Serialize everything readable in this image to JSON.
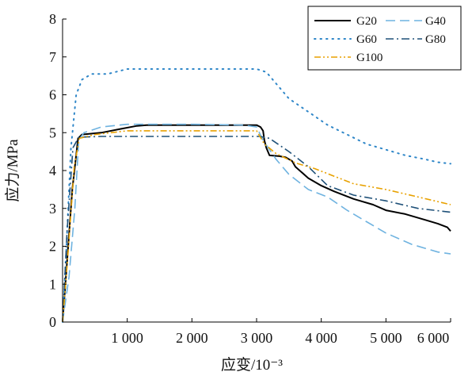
{
  "chart_data": {
    "type": "line",
    "xlabel": "应变/10⁻³",
    "ylabel": "应力/MPa",
    "xlim": [
      0,
      6000
    ],
    "ylim": [
      0,
      8
    ],
    "x_ticks": [
      1000,
      2000,
      3000,
      4000,
      5000,
      6000
    ],
    "x_tick_labels": [
      "1 000",
      "2 000",
      "3 000",
      "4 000",
      "5 000",
      "6 000"
    ],
    "y_ticks": [
      0,
      1,
      2,
      3,
      4,
      5,
      6,
      7,
      8
    ],
    "y_tick_labels": [
      "0",
      "1",
      "2",
      "3",
      "4",
      "5",
      "6",
      "7",
      "8"
    ],
    "grid": false,
    "legend_position": "top-right",
    "series": [
      {
        "name": "G20",
        "color": "#000000",
        "dash": "solid",
        "points": [
          [
            0,
            0
          ],
          [
            70,
            1.6
          ],
          [
            150,
            3.5
          ],
          [
            240,
            4.85
          ],
          [
            300,
            4.95
          ],
          [
            600,
            5.0
          ],
          [
            900,
            5.1
          ],
          [
            1150,
            5.18
          ],
          [
            1300,
            5.2
          ],
          [
            2000,
            5.2
          ],
          [
            2700,
            5.2
          ],
          [
            3000,
            5.2
          ],
          [
            3060,
            5.15
          ],
          [
            3100,
            5.05
          ],
          [
            3120,
            4.8
          ],
          [
            3150,
            4.6
          ],
          [
            3200,
            4.4
          ],
          [
            3350,
            4.38
          ],
          [
            3450,
            4.35
          ],
          [
            3550,
            4.25
          ],
          [
            3600,
            4.1
          ],
          [
            3800,
            3.8
          ],
          [
            4000,
            3.6
          ],
          [
            4200,
            3.45
          ],
          [
            4500,
            3.25
          ],
          [
            4800,
            3.1
          ],
          [
            5000,
            2.95
          ],
          [
            5300,
            2.85
          ],
          [
            5600,
            2.7
          ],
          [
            5800,
            2.6
          ],
          [
            5950,
            2.5
          ],
          [
            6000,
            2.4
          ]
        ]
      },
      {
        "name": "G40",
        "color": "#6fb3e0",
        "dash": "long-dash",
        "points": [
          [
            0,
            0
          ],
          [
            100,
            1.2
          ],
          [
            190,
            3.0
          ],
          [
            250,
            4.8
          ],
          [
            330,
            5.0
          ],
          [
            600,
            5.15
          ],
          [
            1000,
            5.22
          ],
          [
            2000,
            5.22
          ],
          [
            2800,
            5.2
          ],
          [
            3000,
            5.15
          ],
          [
            3100,
            4.8
          ],
          [
            3300,
            4.3
          ],
          [
            3500,
            3.9
          ],
          [
            3800,
            3.5
          ],
          [
            4100,
            3.3
          ],
          [
            4400,
            2.95
          ],
          [
            4700,
            2.65
          ],
          [
            5000,
            2.35
          ],
          [
            5400,
            2.05
          ],
          [
            5800,
            1.85
          ],
          [
            6000,
            1.8
          ]
        ]
      },
      {
        "name": "G60",
        "color": "#2e86c8",
        "dash": "dotted",
        "points": [
          [
            0,
            0
          ],
          [
            60,
            2.0
          ],
          [
            130,
            4.6
          ],
          [
            210,
            6.0
          ],
          [
            300,
            6.4
          ],
          [
            450,
            6.55
          ],
          [
            700,
            6.55
          ],
          [
            1000,
            6.68
          ],
          [
            2000,
            6.68
          ],
          [
            3000,
            6.68
          ],
          [
            3150,
            6.6
          ],
          [
            3300,
            6.3
          ],
          [
            3500,
            5.9
          ],
          [
            3800,
            5.55
          ],
          [
            4100,
            5.2
          ],
          [
            4400,
            4.95
          ],
          [
            4700,
            4.7
          ],
          [
            5000,
            4.55
          ],
          [
            5300,
            4.4
          ],
          [
            5600,
            4.3
          ],
          [
            5800,
            4.22
          ],
          [
            6000,
            4.18
          ]
        ]
      },
      {
        "name": "G80",
        "color": "#1e5078",
        "dash": "dash-dot",
        "points": [
          [
            0,
            0
          ],
          [
            70,
            2.4
          ],
          [
            160,
            4.6
          ],
          [
            250,
            4.88
          ],
          [
            600,
            4.9
          ],
          [
            1500,
            4.9
          ],
          [
            2500,
            4.9
          ],
          [
            3050,
            4.9
          ],
          [
            3200,
            4.85
          ],
          [
            3500,
            4.5
          ],
          [
            3800,
            4.1
          ],
          [
            4100,
            3.6
          ],
          [
            4500,
            3.35
          ],
          [
            5000,
            3.2
          ],
          [
            5500,
            3.0
          ],
          [
            6000,
            2.9
          ]
        ]
      },
      {
        "name": "G100",
        "color": "#e8a100",
        "dash": "dash-dot-dot",
        "points": [
          [
            0,
            0
          ],
          [
            80,
            1.7
          ],
          [
            180,
            4.1
          ],
          [
            260,
            4.85
          ],
          [
            500,
            4.95
          ],
          [
            1000,
            5.05
          ],
          [
            2000,
            5.05
          ],
          [
            3000,
            5.05
          ],
          [
            3120,
            4.7
          ],
          [
            3300,
            4.45
          ],
          [
            3600,
            4.2
          ],
          [
            3900,
            4.05
          ],
          [
            4200,
            3.85
          ],
          [
            4500,
            3.65
          ],
          [
            5000,
            3.5
          ],
          [
            5500,
            3.3
          ],
          [
            6000,
            3.1
          ]
        ]
      }
    ]
  }
}
